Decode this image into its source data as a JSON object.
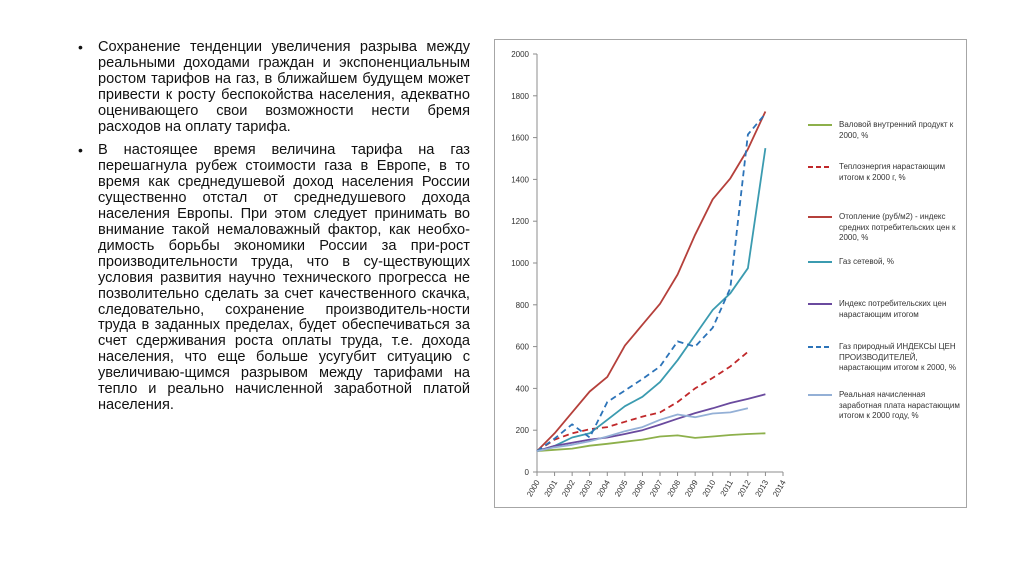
{
  "bullets": [
    "Сохранение тенденции увеличения разрыва между реальными доходами граждан и экспоненциальным ростом тарифов на газ, в ближайшем будущем может привести к росту беспокойства населения, адекватно оценивающего свои возможности нести бремя расходов на оплату тарифа.",
    "В настоящее время величина тарифа на газ перешагнула рубеж стоимости газа в Европе, в то время как среднедушевой доход населения России существенно отстал от среднедушевого дохода населения Европы. При этом следует принимать во внимание такой немаловажный фактор, как необхо-димость борьбы экономики России за при-рост производительности труда, что в су-ществующих условия развития научно технического прогресса не позволительно сделать за счет качественного скачка, следовательно, сохранение производитель-ности труда в заданных пределах, будет обеспечиваться за счет сдерживания роста оплаты труда, т.е. дохода населения, что еще больше усугубит ситуацию с увеличиваю-щимся разрывом между тарифами на тепло и реально начисленной заработной платой населения."
  ],
  "chart_data": {
    "type": "line",
    "title": "",
    "xlabel": "",
    "ylabel": "",
    "x": [
      "2000",
      "2001",
      "2002",
      "2003",
      "2004",
      "2005",
      "2006",
      "2007",
      "2008",
      "2009",
      "2010",
      "2011",
      "2012",
      "2013",
      "2014"
    ],
    "y_ticks": [
      0,
      200,
      400,
      600,
      800,
      1000,
      1200,
      1400,
      1600,
      1800,
      2000
    ],
    "ylim": [
      0,
      2000
    ],
    "grid": false,
    "legend_position": "right",
    "series": [
      {
        "name": "Валовой внутренний продукт к 2000, %",
        "color": "#8db04b",
        "dash": false,
        "values": [
          100,
          106,
          112,
          126,
          135,
          145,
          155,
          170,
          175,
          163,
          170,
          177,
          182,
          185,
          null
        ]
      },
      {
        "name": "Теплоэнергия нарастающим итогом к 2000 г, %",
        "color": "#c0282a",
        "dash": true,
        "values": [
          100,
          155,
          185,
          205,
          215,
          240,
          265,
          285,
          335,
          400,
          450,
          505,
          575,
          null,
          null
        ]
      },
      {
        "name": "Отопление (руб/м2) - индекс средних потребительских цен к 2000, %",
        "color": "#b5403b",
        "dash": false,
        "values": [
          100,
          185,
          285,
          385,
          455,
          605,
          705,
          805,
          945,
          1135,
          1305,
          1405,
          1545,
          1725,
          null
        ]
      },
      {
        "name": "Газ сетевой, %",
        "color": "#3b9bb0",
        "dash": false,
        "values": [
          100,
          125,
          165,
          185,
          250,
          315,
          360,
          430,
          535,
          655,
          775,
          855,
          975,
          1550,
          null
        ]
      },
      {
        "name": "Индекс потребительских цен нарастающим итогом",
        "color": "#6a4a9e",
        "dash": false,
        "values": [
          100,
          125,
          140,
          155,
          165,
          182,
          200,
          227,
          255,
          282,
          305,
          330,
          350,
          372,
          null
        ]
      },
      {
        "name": "Газ природный ИНДЕКСЫ ЦЕН ПРОИЗВОДИТЕЛЕЙ, нарастающим итогом к 2000, %",
        "color": "#2c73b8",
        "dash": true,
        "values": [
          100,
          160,
          228,
          165,
          335,
          390,
          445,
          505,
          625,
          600,
          690,
          880,
          1615,
          1715,
          null
        ]
      },
      {
        "name": "Реальная начисленная заработная плата нарастающим итогом к 2000 году, %",
        "color": "#94b0d6",
        "dash": false,
        "values": [
          100,
          118,
          130,
          147,
          170,
          195,
          215,
          250,
          275,
          262,
          280,
          285,
          305,
          null,
          null
        ]
      }
    ]
  }
}
